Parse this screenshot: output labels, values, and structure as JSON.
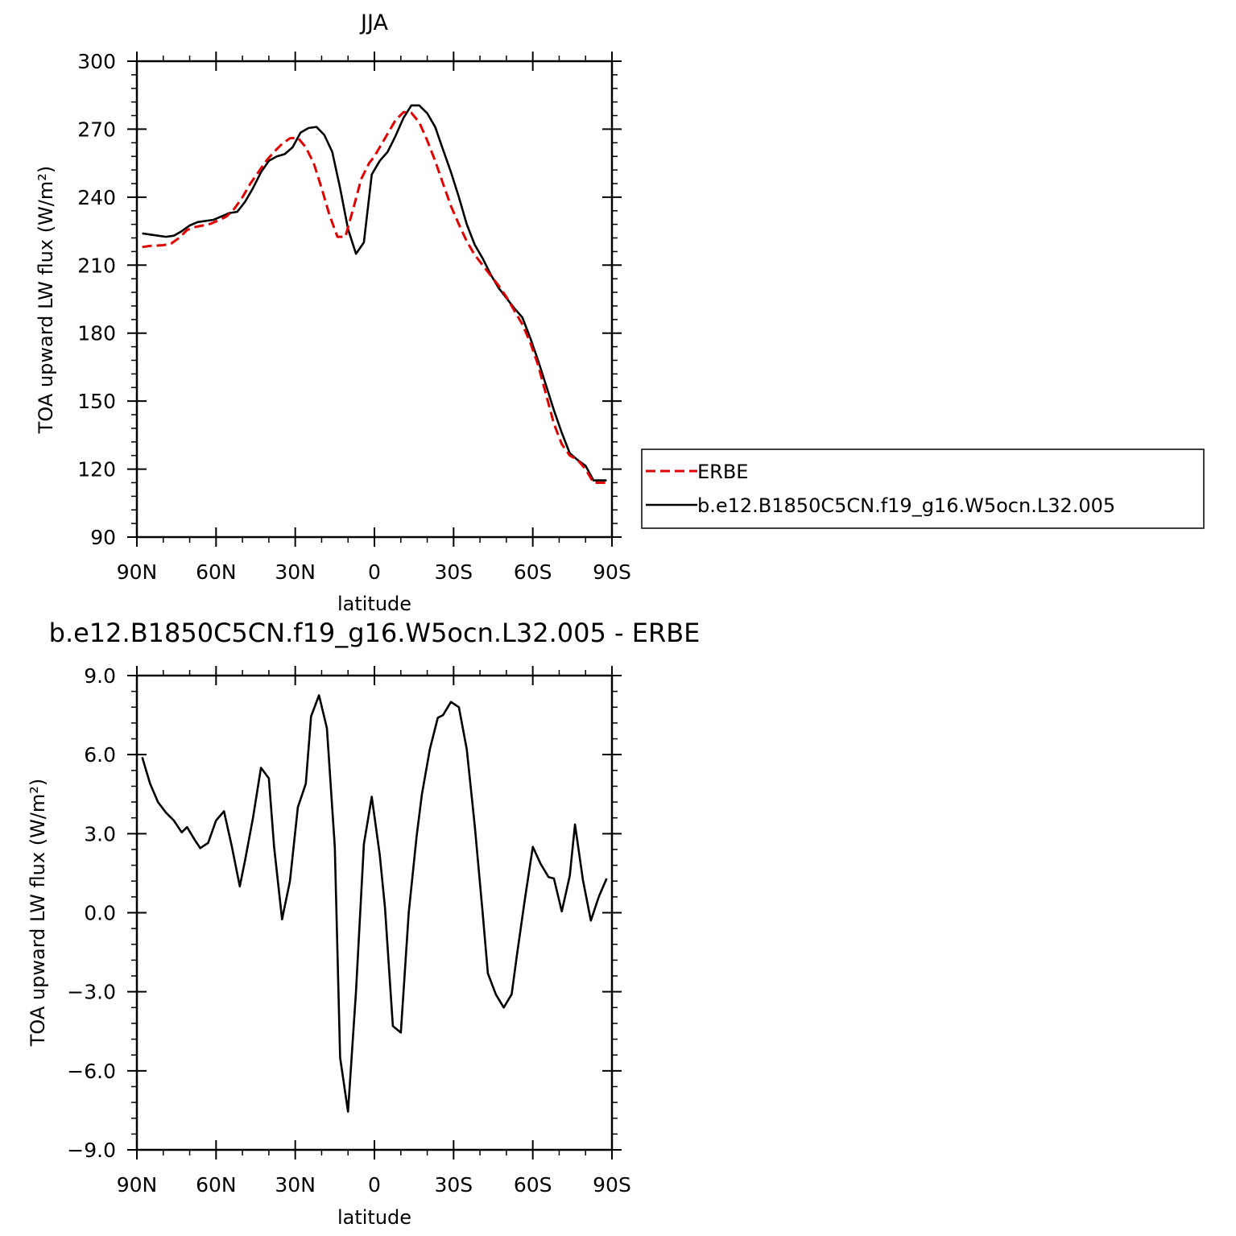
{
  "chart_data": [
    {
      "type": "line",
      "title": "JJA",
      "xlabel": "latitude",
      "ylabel": "TOA upward LW flux (W/m²)",
      "ylim": [
        90,
        300
      ],
      "xlim": [
        90,
        -90
      ],
      "yticks": [
        90,
        120,
        150,
        180,
        210,
        240,
        270,
        300
      ],
      "ytick_labels": [
        "90",
        "120",
        "150",
        "180",
        "210",
        "240",
        "270",
        "300"
      ],
      "xticks": [
        90,
        60,
        30,
        0,
        -30,
        -60,
        -90
      ],
      "xtick_labels": [
        "90N",
        "60N",
        "30N",
        "0",
        "30S",
        "60S",
        "90S"
      ],
      "legend": [
        "ERBE",
        "b.e12.B1850C5CN.f19_g16.W5ocn.L32.005"
      ],
      "legend_position": "right",
      "series": [
        {
          "name": "ERBE",
          "color": "#e00000",
          "dash": true,
          "x": [
            88,
            85,
            80,
            77,
            74,
            71,
            68,
            65,
            62,
            59,
            56,
            53,
            50,
            47,
            44,
            41,
            38,
            35,
            32,
            29,
            26,
            23,
            20,
            17,
            14,
            11,
            8,
            5,
            2,
            0,
            -2,
            -5,
            -8,
            -11,
            -14,
            -17,
            -20,
            -23,
            -26,
            -29,
            -32,
            -35,
            -38,
            -41,
            -44,
            -47,
            -50,
            -53,
            -56,
            -59,
            -62,
            -65,
            -68,
            -71,
            -74,
            -77,
            -80,
            -83,
            -86,
            -88
          ],
          "y": [
            218,
            218.5,
            218.8,
            219.5,
            222,
            225.5,
            226.8,
            227.5,
            228.3,
            229.8,
            231.5,
            235,
            240,
            246,
            251,
            256,
            260,
            263.5,
            266,
            266.2,
            262,
            255,
            244,
            232,
            222.5,
            222.5,
            235,
            248,
            255,
            258,
            262,
            268,
            274,
            277.5,
            277.2,
            273,
            265,
            256,
            246,
            236,
            228,
            220.5,
            214.5,
            210,
            205.5,
            201,
            196,
            190,
            184,
            176,
            166,
            153,
            140,
            131,
            126,
            124,
            120,
            114,
            114,
            114
          ]
        },
        {
          "name": "b.e12.B1850C5CN.f19_g16.W5ocn.L32.005",
          "color": "#000000",
          "dash": false,
          "x": [
            88,
            85,
            82,
            79,
            76,
            73,
            70,
            67,
            64,
            61,
            58,
            55,
            52,
            49,
            46,
            43,
            40,
            37,
            34,
            31,
            28,
            25,
            22,
            19,
            16,
            13,
            10,
            7,
            4,
            1,
            -2,
            -5,
            -8,
            -11,
            -14,
            -17,
            -20,
            -23,
            -26,
            -29,
            -32,
            -35,
            -38,
            -41,
            -44,
            -47,
            -50,
            -53,
            -56,
            -59,
            -62,
            -65,
            -68,
            -71,
            -74,
            -77,
            -80,
            -83,
            -86,
            -88
          ],
          "y": [
            224,
            223.5,
            223,
            222.5,
            223,
            225,
            227.5,
            229,
            229.5,
            230,
            231.5,
            233,
            233.5,
            238,
            244,
            251,
            256,
            258,
            259,
            262,
            268.5,
            270.5,
            271,
            267.5,
            260,
            244,
            226,
            215,
            220,
            250,
            256,
            260,
            267,
            275,
            280.5,
            280.5,
            277,
            271,
            261,
            251,
            240,
            228,
            219,
            213,
            206,
            200,
            195.5,
            191,
            187,
            178,
            168,
            157,
            146,
            136,
            127,
            124,
            121.5,
            115,
            115,
            115
          ]
        }
      ]
    },
    {
      "type": "line",
      "title": "b.e12.B1850C5CN.f19_g16.W5ocn.L32.005 - ERBE",
      "xlabel": "latitude",
      "ylabel": "TOA upward LW flux (W/m²)",
      "ylim": [
        -9.0,
        9.0
      ],
      "xlim": [
        90,
        -90
      ],
      "yticks": [
        -9,
        -6,
        -3,
        0,
        3,
        6,
        9
      ],
      "ytick_labels": [
        "-9.0",
        "-6.0",
        "-3.0",
        "0.0",
        "3.0",
        "6.0",
        "9.0"
      ],
      "xticks": [
        90,
        60,
        30,
        0,
        -30,
        -60,
        -90
      ],
      "xtick_labels": [
        "90N",
        "60N",
        "30N",
        "0",
        "30S",
        "60S",
        "90S"
      ],
      "series": [
        {
          "color": "#000000",
          "x": [
            88,
            85,
            82,
            79,
            76,
            73,
            71,
            68,
            66,
            63,
            60,
            57,
            54,
            51,
            49,
            46,
            43,
            40,
            38,
            35,
            32,
            29,
            26,
            24,
            21,
            18,
            15,
            13,
            10,
            7,
            4,
            1,
            -2,
            -4,
            -7,
            -10,
            -13,
            -16,
            -18,
            -21,
            -24,
            -26,
            -29,
            -32,
            -35,
            -38,
            -41,
            -43,
            -46,
            -49,
            -52,
            -54,
            -57,
            -60,
            -63,
            -66,
            -68,
            -71,
            -74,
            -76,
            -79,
            -82,
            -85,
            -88
          ],
          "y": [
            5.9,
            4.9,
            4.2,
            3.8,
            3.5,
            3.05,
            3.25,
            2.75,
            2.45,
            2.65,
            3.5,
            3.85,
            2.5,
            1.0,
            2.0,
            3.6,
            5.5,
            5.1,
            2.5,
            -0.25,
            1.2,
            4.0,
            4.9,
            7.45,
            8.25,
            7.0,
            2.5,
            -5.5,
            -7.55,
            -3.0,
            2.6,
            4.4,
            2.2,
            0.2,
            -4.3,
            -4.55,
            0.0,
            2.9,
            4.5,
            6.2,
            7.4,
            7.5,
            8.0,
            7.8,
            6.2,
            3.3,
            0.0,
            -2.3,
            -3.1,
            -3.6,
            -3.1,
            -1.6,
            0.5,
            2.5,
            1.85,
            1.35,
            1.3,
            0.05,
            1.4,
            3.35,
            1.25,
            -0.3,
            0.6,
            1.3
          ]
        }
      ]
    }
  ]
}
